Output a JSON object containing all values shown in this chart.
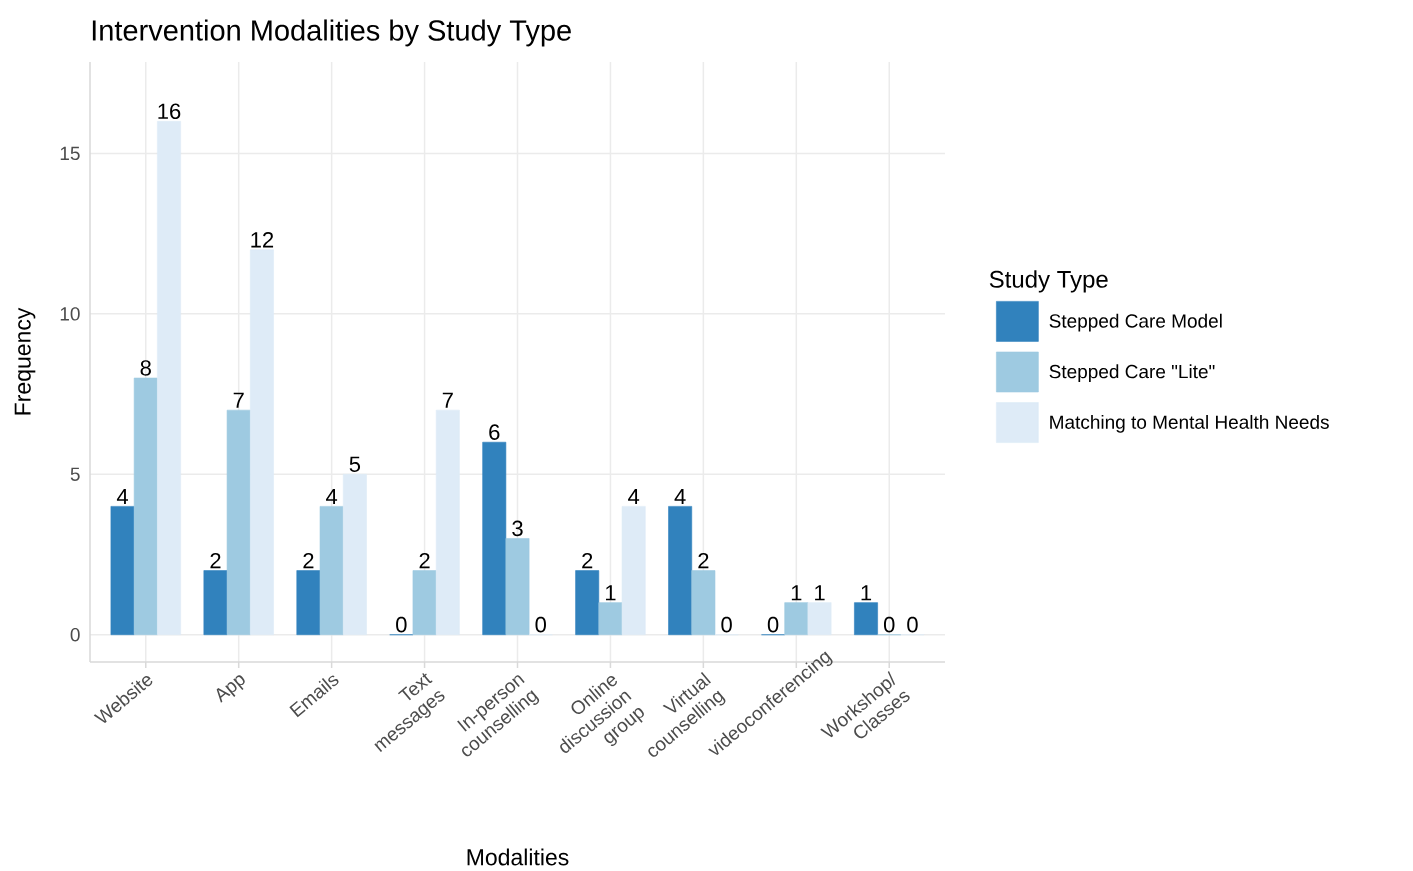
{
  "chart_data": {
    "type": "bar",
    "title": "Intervention Modalities by Study Type",
    "xlabel": "Modalities",
    "ylabel": "Frequency",
    "legend_title": "Study Type",
    "categories": [
      "Website",
      "App",
      "Emails",
      "Text messages",
      "In-person counselling",
      "Online discussion group",
      "Virtual counselling",
      "videoconferencing",
      "Workshop/ Classes"
    ],
    "series": [
      {
        "name": "Stepped Care Model",
        "color": "#3182bd",
        "values": [
          4,
          2,
          2,
          0,
          6,
          2,
          4,
          0,
          1
        ]
      },
      {
        "name": "Stepped Care \"Lite\"",
        "color": "#9ecae1",
        "values": [
          8,
          7,
          4,
          2,
          3,
          1,
          2,
          1,
          0
        ]
      },
      {
        "name": "Matching to Mental Health Needs",
        "color": "#deebf7",
        "values": [
          16,
          12,
          5,
          7,
          0,
          4,
          0,
          1,
          0
        ]
      }
    ],
    "ylim": [
      -0.85,
      17.85
    ],
    "yticks": [
      0,
      5,
      10,
      15
    ],
    "grid": true,
    "legend": "right",
    "data_labels": true
  }
}
